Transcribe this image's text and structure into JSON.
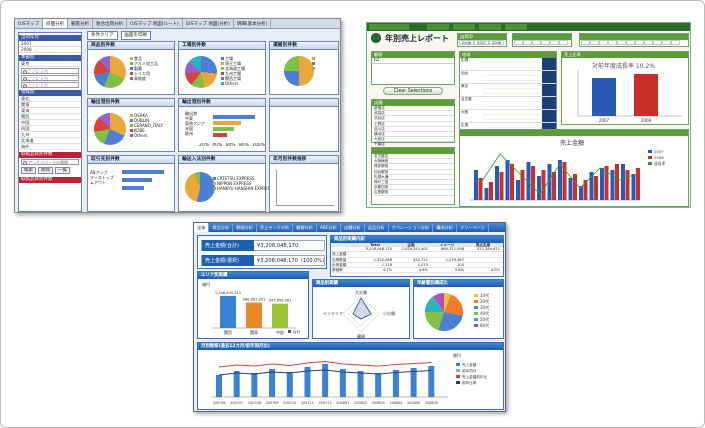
{
  "w1": {
    "tabs": [
      "GISマップ",
      "商圏分析",
      "顧客分析",
      "競合出荷分析",
      "GISマップ 地図(ルート)",
      "GISマップ 地図(分析)",
      "明細(基本分析)"
    ],
    "side": {
      "h1": "出荷年月",
      "h1rows": [
        "2007",
        "2008",
        "01 02 03"
      ],
      "h2": "本部別",
      "h2rows": [
        "東京",
        "名古屋"
      ],
      "search1": "ここに入力",
      "search2": "ここに入力",
      "search3": "ここに入力",
      "h3": "地域別",
      "h4": "地域別",
      "h4rows": [
        "東北",
        "関東",
        "東海",
        "関西",
        "中国",
        "四国",
        "九州",
        "北海道",
        "海外"
      ],
      "h5": "取扱品目別件数",
      "h5val": "アッセイローラの種類",
      "btn1": "検索",
      "btn2": "削除",
      "btn3": "一覧",
      "h6": "取扱品目別件数"
    },
    "toolbar": {
      "b1": "条件クリア",
      "b2": "画面を印刷"
    },
    "panels": [
      {
        "title": "商品別件数",
        "legend": [
          "食品",
          "アルミ加工品",
          "製薬",
          "シリカ用",
          "高純度"
        ],
        "colors": [
          "#e9a83a",
          "#7fc243",
          "#4d7fd6",
          "#d6433a",
          "#9a5fcf"
        ]
      },
      {
        "title": "工場別件数",
        "legend": [
          "工場",
          "埼玉工場",
          "北海道工場",
          "九州工場",
          "関西工場",
          "Others"
        ],
        "colors": [
          "#4d7fd6",
          "#e9a83a",
          "#7fc243",
          "#d6433a",
          "#9a5fcf",
          "#2bb3c0"
        ]
      },
      {
        "title": "運搬別件数",
        "legend": [
          "",
          "",
          ""
        ],
        "colors": [
          "#e9a83a",
          "#4d7fd6",
          "#7fc243"
        ]
      },
      {
        "title": "輸出港別件数",
        "legend": [
          "OSAKA",
          "DUBLIN",
          "CERANO_ITALY",
          "KOBE",
          "Others"
        ],
        "colors": [
          "#e9a83a",
          "#4d7fd6",
          "#7fc243",
          "#d6433a",
          "#9a5fcf"
        ]
      },
      {
        "title": "輸出港別件数",
        "legend": [
          "輸出港",
          "中東",
          "東南アジア",
          "米国",
          "欧州"
        ],
        "pct": [
          "20%",
          "40%",
          "60%",
          "80%",
          "100%"
        ]
      },
      {
        "title": "",
        "legend": []
      },
      {
        "title": "取引先別件数",
        "legend": [
          "ABアップ",
          "マーストップ",
          "ムアウト"
        ]
      },
      {
        "title": "輸送入法別件数",
        "legend": [
          "CRTETSU EXPRESS",
          "NIPPON EXPRESS",
          "HANKYU HANSHIN EXPRESS"
        ],
        "colors": [
          "#4d7fd6",
          "#e9a83a",
          "#7fc243"
        ]
      },
      {
        "title": "年月別件数推移",
        "legend": []
      }
    ]
  },
  "w2": {
    "title": "年別売上レポート",
    "sel_header": "出荷ID",
    "years": [
      "2006",
      "2007",
      "2008"
    ],
    "listh": "顧客",
    "list_col": "ID",
    "clear_btn": "Clear Selections",
    "store_head": "店舗",
    "stores": [
      "新宿店",
      "池袋店",
      "渋谷店",
      "上野店",
      "品川店",
      "横浜店",
      "大宮店",
      "千葉店"
    ],
    "region_h": "地域",
    "regions": [
      "札幌",
      "仙台",
      "東京",
      "名古屋",
      "大阪",
      "広島",
      "福岡"
    ],
    "chart1_title": "売上比率",
    "chart1_sub": "対前年度成長率 10.2%",
    "chart1_years": [
      "2007",
      "2008"
    ],
    "chart2_title": "売上金額",
    "chart2_legend": [
      "2007",
      "2008",
      "成長率"
    ],
    "bottom_list": [
      "名古屋店",
      "大阪梅田",
      "博多駅前",
      "仙台駅前",
      "札幌大通",
      "神戸三宮",
      "京都四条",
      "広島駅前"
    ]
  },
  "w3": {
    "tabs": [
      "全体",
      "商品分析",
      "期間分析",
      "売上ランク分析",
      "顧客分析",
      "ABC分析",
      "店舗分析",
      "返品分析",
      "オペレーション分析",
      "構成分析",
      "フリーページ"
    ],
    "kpi1_label": "売上金額(合計)",
    "kpi1_val": "¥3,208,048,170",
    "kpi2_label": "売上金額(選択)",
    "kpi2_val": "¥3,208,048,170",
    "kpi2_pct": "(100.0%)",
    "table_title": "商品別実績内訳",
    "table_cols": [
      "",
      "Total",
      "企画",
      "イメージ",
      "見込生産"
    ],
    "table_rows": [
      [
        "",
        "3,208,048,170",
        "2,026,352,401",
        "660,311,098",
        "521,384,671"
      ],
      [
        "売上金額",
        "",
        "",
        "",
        ""
      ],
      [
        "出荷数量",
        "1,532,088",
        "452,721",
        "1,079,367",
        ""
      ],
      [
        "出荷金額",
        "1,118",
        "1,015",
        "103",
        ""
      ],
      [
        "原価率",
        "4.7%",
        "4.6%",
        "5.8%",
        "4.0%"
      ]
    ],
    "area_title": "エリア別実績",
    "area_ylabel": "億円",
    "area_bars": [
      {
        "label": "関西",
        "value": 1246405311,
        "text": "1,246,405,311"
      },
      {
        "label": "関東",
        "value": 988687001,
        "text": "988,687,001"
      },
      {
        "label": "中部",
        "value": 947850081,
        "text": "947,850,081"
      }
    ],
    "area_legend": "合計",
    "radar_title": "商品別実績",
    "radar_labels": [
      "大分類",
      "小分類",
      "購買",
      "インテリア"
    ],
    "pie_title": "年齢層別構成比",
    "pie_legend": [
      "10代",
      "20代",
      "30代",
      "40代",
      "50代",
      "60代"
    ],
    "trend_title": "月別推移(過去12カ月/前年同月比)",
    "trend_unit": "億円",
    "trend_months": [
      "200706",
      "200707",
      "200708",
      "200709",
      "200710",
      "200711",
      "200712",
      "200801",
      "200802",
      "200803",
      "200804",
      "200805",
      "200806"
    ],
    "trend_legend": [
      "売上金額",
      "前年同月",
      "売上金額前年比",
      "前年比率"
    ]
  }
}
